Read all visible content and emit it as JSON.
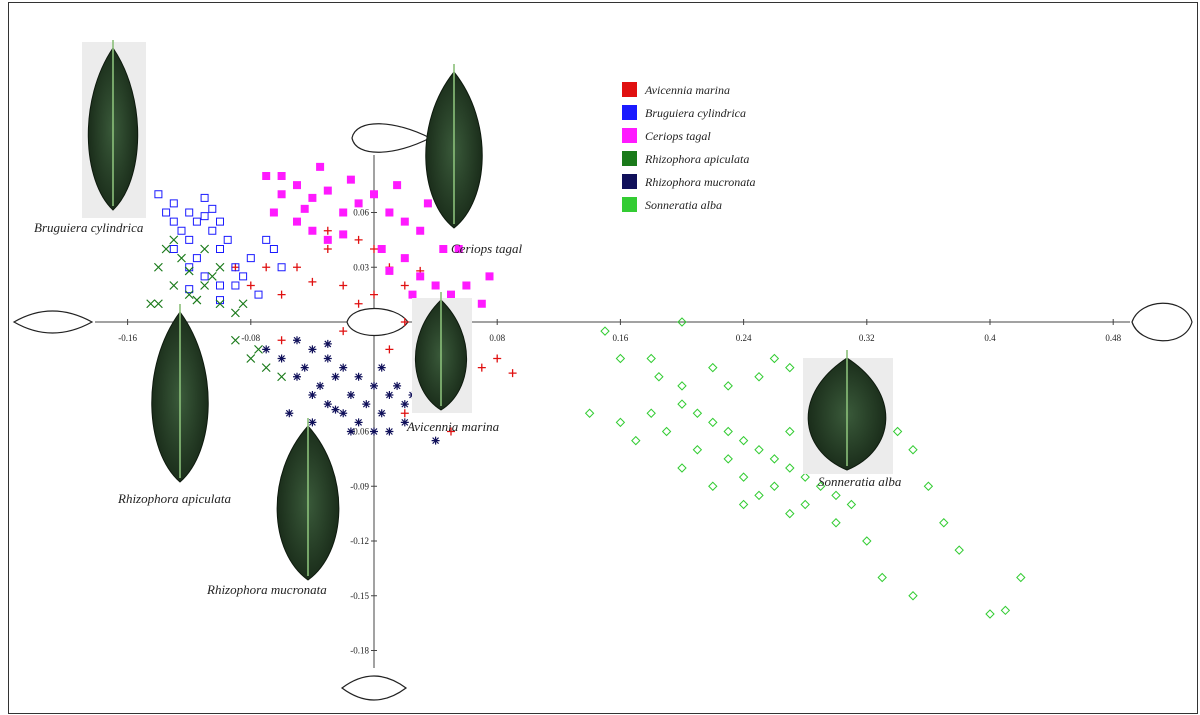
{
  "chart_data": {
    "type": "scatter",
    "title": "",
    "xlabel": "",
    "ylabel": "",
    "xlim": [
      -0.21,
      0.52
    ],
    "ylim": [
      -0.205,
      0.11
    ],
    "x_ticks": [
      "-0.16",
      "-0.08",
      "0.08",
      "0.16",
      "0.24",
      "0.32",
      "0.4",
      "0.48"
    ],
    "y_ticks": [
      "0.06",
      "0.03",
      "-0.06",
      "-0.09",
      "-0.12",
      "-0.15",
      "-0.18"
    ],
    "grid": false,
    "legend_position": "top-center",
    "series": [
      {
        "name": "Avicennia marina",
        "color": "#e01010",
        "marker": "plus",
        "points": [
          [
            -0.09,
            0.03
          ],
          [
            -0.08,
            0.02
          ],
          [
            -0.06,
            0.015
          ],
          [
            -0.05,
            0.03
          ],
          [
            -0.04,
            0.022
          ],
          [
            -0.03,
            0.04
          ],
          [
            -0.02,
            0.02
          ],
          [
            -0.01,
            0.01
          ],
          [
            0,
            0.015
          ],
          [
            0.01,
            0.03
          ],
          [
            0.02,
            0.02
          ],
          [
            0.03,
            0.028
          ],
          [
            0.04,
            0.01
          ],
          [
            0.02,
            0.0
          ],
          [
            -0.02,
            -0.005
          ],
          [
            0.05,
            -0.01
          ],
          [
            0.08,
            -0.02
          ],
          [
            0.09,
            -0.028
          ],
          [
            0.06,
            -0.04
          ],
          [
            0.03,
            -0.03
          ],
          [
            0.02,
            -0.05
          ],
          [
            0.05,
            -0.06
          ],
          [
            -0.06,
            -0.01
          ],
          [
            -0.03,
            0.05
          ],
          [
            0,
            0.04
          ],
          [
            0.01,
            -0.015
          ],
          [
            0.04,
            -0.015
          ],
          [
            -0.07,
            0.03
          ],
          [
            0.07,
            -0.025
          ],
          [
            -0.01,
            0.045
          ]
        ]
      },
      {
        "name": "Bruguiera cylindrica",
        "color": "#1a1aff",
        "marker": "square-open",
        "points": [
          [
            -0.14,
            0.07
          ],
          [
            -0.13,
            0.065
          ],
          [
            -0.12,
            0.06
          ],
          [
            -0.11,
            0.058
          ],
          [
            -0.105,
            0.05
          ],
          [
            -0.1,
            0.04
          ],
          [
            -0.12,
            0.045
          ],
          [
            -0.13,
            0.055
          ],
          [
            -0.115,
            0.035
          ],
          [
            -0.09,
            0.03
          ],
          [
            -0.1,
            0.02
          ],
          [
            -0.12,
            0.018
          ],
          [
            -0.085,
            0.025
          ],
          [
            -0.095,
            0.045
          ],
          [
            -0.08,
            0.035
          ],
          [
            -0.07,
            0.045
          ],
          [
            -0.06,
            0.03
          ],
          [
            -0.065,
            0.04
          ],
          [
            -0.11,
            0.068
          ],
          [
            -0.125,
            0.05
          ],
          [
            -0.135,
            0.06
          ],
          [
            -0.105,
            0.062
          ],
          [
            -0.115,
            0.055
          ],
          [
            -0.09,
            0.02
          ],
          [
            -0.1,
            0.012
          ],
          [
            -0.075,
            0.015
          ],
          [
            -0.1,
            0.055
          ],
          [
            -0.12,
            0.03
          ],
          [
            -0.13,
            0.04
          ],
          [
            -0.11,
            0.025
          ]
        ]
      },
      {
        "name": "Ceriops tagal",
        "color": "#ff1aff",
        "marker": "square",
        "points": [
          [
            -0.07,
            0.08
          ],
          [
            -0.06,
            0.07
          ],
          [
            -0.05,
            0.075
          ],
          [
            -0.04,
            0.068
          ],
          [
            -0.03,
            0.072
          ],
          [
            -0.02,
            0.06
          ],
          [
            -0.01,
            0.065
          ],
          [
            0,
            0.07
          ],
          [
            0.01,
            0.06
          ],
          [
            0.02,
            0.055
          ],
          [
            0.03,
            0.05
          ],
          [
            -0.05,
            0.055
          ],
          [
            -0.04,
            0.05
          ],
          [
            -0.03,
            0.045
          ],
          [
            -0.02,
            0.048
          ],
          [
            0.005,
            0.04
          ],
          [
            0.02,
            0.035
          ],
          [
            0.03,
            0.025
          ],
          [
            0.04,
            0.02
          ],
          [
            0.05,
            0.015
          ],
          [
            0.06,
            0.02
          ],
          [
            0.07,
            0.01
          ],
          [
            0.075,
            0.025
          ],
          [
            0.045,
            0.04
          ],
          [
            -0.06,
            0.08
          ],
          [
            -0.035,
            0.085
          ],
          [
            -0.015,
            0.078
          ],
          [
            0.015,
            0.075
          ],
          [
            0.035,
            0.065
          ],
          [
            -0.045,
            0.062
          ],
          [
            0.01,
            0.028
          ],
          [
            0.055,
            0.04
          ],
          [
            -0.065,
            0.06
          ],
          [
            0.04,
            0.005
          ],
          [
            0.025,
            0.015
          ]
        ]
      },
      {
        "name": "Rhizophora apiculata",
        "color": "#1a7a1a",
        "marker": "cross",
        "points": [
          [
            -0.14,
            0.01
          ],
          [
            -0.13,
            0.02
          ],
          [
            -0.14,
            0.03
          ],
          [
            -0.12,
            0.015
          ],
          [
            -0.11,
            0.02
          ],
          [
            -0.12,
            0.028
          ],
          [
            -0.1,
            0.01
          ],
          [
            -0.09,
            0.005
          ],
          [
            -0.135,
            0.04
          ],
          [
            -0.125,
            0.035
          ],
          [
            -0.11,
            0.04
          ],
          [
            -0.1,
            0.03
          ],
          [
            -0.085,
            0.01
          ],
          [
            -0.09,
            -0.01
          ],
          [
            -0.08,
            -0.02
          ],
          [
            -0.075,
            -0.015
          ],
          [
            -0.06,
            -0.03
          ],
          [
            -0.07,
            -0.025
          ],
          [
            -0.115,
            0.012
          ],
          [
            -0.145,
            0.01
          ],
          [
            -0.13,
            0.045
          ],
          [
            -0.105,
            0.025
          ]
        ]
      },
      {
        "name": "Rhizophora mucronata",
        "color": "#10105a",
        "marker": "asterisk",
        "points": [
          [
            -0.05,
            -0.01
          ],
          [
            -0.04,
            -0.015
          ],
          [
            -0.03,
            -0.02
          ],
          [
            -0.02,
            -0.025
          ],
          [
            -0.01,
            -0.03
          ],
          [
            0,
            -0.035
          ],
          [
            0.01,
            -0.04
          ],
          [
            0.02,
            -0.045
          ],
          [
            -0.05,
            -0.03
          ],
          [
            -0.04,
            -0.04
          ],
          [
            -0.03,
            -0.045
          ],
          [
            -0.02,
            -0.05
          ],
          [
            -0.01,
            -0.055
          ],
          [
            0,
            -0.06
          ],
          [
            0.01,
            -0.06
          ],
          [
            0.02,
            -0.055
          ],
          [
            -0.06,
            -0.02
          ],
          [
            -0.07,
            -0.015
          ],
          [
            -0.045,
            -0.025
          ],
          [
            -0.035,
            -0.035
          ],
          [
            -0.025,
            -0.03
          ],
          [
            -0.015,
            -0.04
          ],
          [
            -0.005,
            -0.045
          ],
          [
            0.005,
            -0.05
          ],
          [
            0.015,
            -0.035
          ],
          [
            0.025,
            -0.04
          ],
          [
            -0.055,
            -0.05
          ],
          [
            -0.015,
            -0.06
          ],
          [
            0.03,
            -0.025
          ],
          [
            -0.04,
            -0.055
          ],
          [
            0.04,
            -0.065
          ],
          [
            -0.03,
            -0.012
          ],
          [
            0.005,
            -0.025
          ],
          [
            -0.025,
            -0.048
          ]
        ]
      },
      {
        "name": "Sonneratia alba",
        "color": "#33cc33",
        "marker": "diamond-open",
        "points": [
          [
            0.15,
            -0.005
          ],
          [
            0.2,
            0.0
          ],
          [
            0.16,
            -0.02
          ],
          [
            0.18,
            -0.02
          ],
          [
            0.22,
            -0.025
          ],
          [
            0.25,
            -0.03
          ],
          [
            0.26,
            -0.02
          ],
          [
            0.27,
            -0.025
          ],
          [
            0.14,
            -0.05
          ],
          [
            0.16,
            -0.055
          ],
          [
            0.18,
            -0.05
          ],
          [
            0.2,
            -0.045
          ],
          [
            0.21,
            -0.05
          ],
          [
            0.22,
            -0.055
          ],
          [
            0.23,
            -0.06
          ],
          [
            0.24,
            -0.065
          ],
          [
            0.25,
            -0.07
          ],
          [
            0.26,
            -0.075
          ],
          [
            0.27,
            -0.08
          ],
          [
            0.28,
            -0.085
          ],
          [
            0.29,
            -0.09
          ],
          [
            0.3,
            -0.095
          ],
          [
            0.31,
            -0.1
          ],
          [
            0.17,
            -0.065
          ],
          [
            0.19,
            -0.06
          ],
          [
            0.21,
            -0.07
          ],
          [
            0.23,
            -0.075
          ],
          [
            0.24,
            -0.085
          ],
          [
            0.26,
            -0.09
          ],
          [
            0.28,
            -0.1
          ],
          [
            0.3,
            -0.11
          ],
          [
            0.32,
            -0.12
          ],
          [
            0.33,
            -0.05
          ],
          [
            0.34,
            -0.06
          ],
          [
            0.35,
            -0.07
          ],
          [
            0.36,
            -0.09
          ],
          [
            0.37,
            -0.11
          ],
          [
            0.38,
            -0.125
          ],
          [
            0.4,
            -0.16
          ],
          [
            0.41,
            -0.158
          ],
          [
            0.42,
            -0.14
          ],
          [
            0.33,
            -0.14
          ],
          [
            0.35,
            -0.15
          ],
          [
            0.22,
            -0.09
          ],
          [
            0.24,
            -0.1
          ],
          [
            0.27,
            -0.06
          ],
          [
            0.29,
            -0.07
          ],
          [
            0.31,
            -0.075
          ],
          [
            0.2,
            -0.08
          ],
          [
            0.25,
            -0.095
          ],
          [
            0.27,
            -0.105
          ],
          [
            0.23,
            -0.035
          ],
          [
            0.2,
            -0.035
          ],
          [
            0.185,
            -0.03
          ]
        ]
      }
    ],
    "species_labels": [
      "Bruguiera cylindrica",
      "Ceriops tagal",
      "Avicennia marina",
      "Rhizophora apiculata",
      "Rhizophora mucronata",
      "Sonneratia alba"
    ]
  }
}
